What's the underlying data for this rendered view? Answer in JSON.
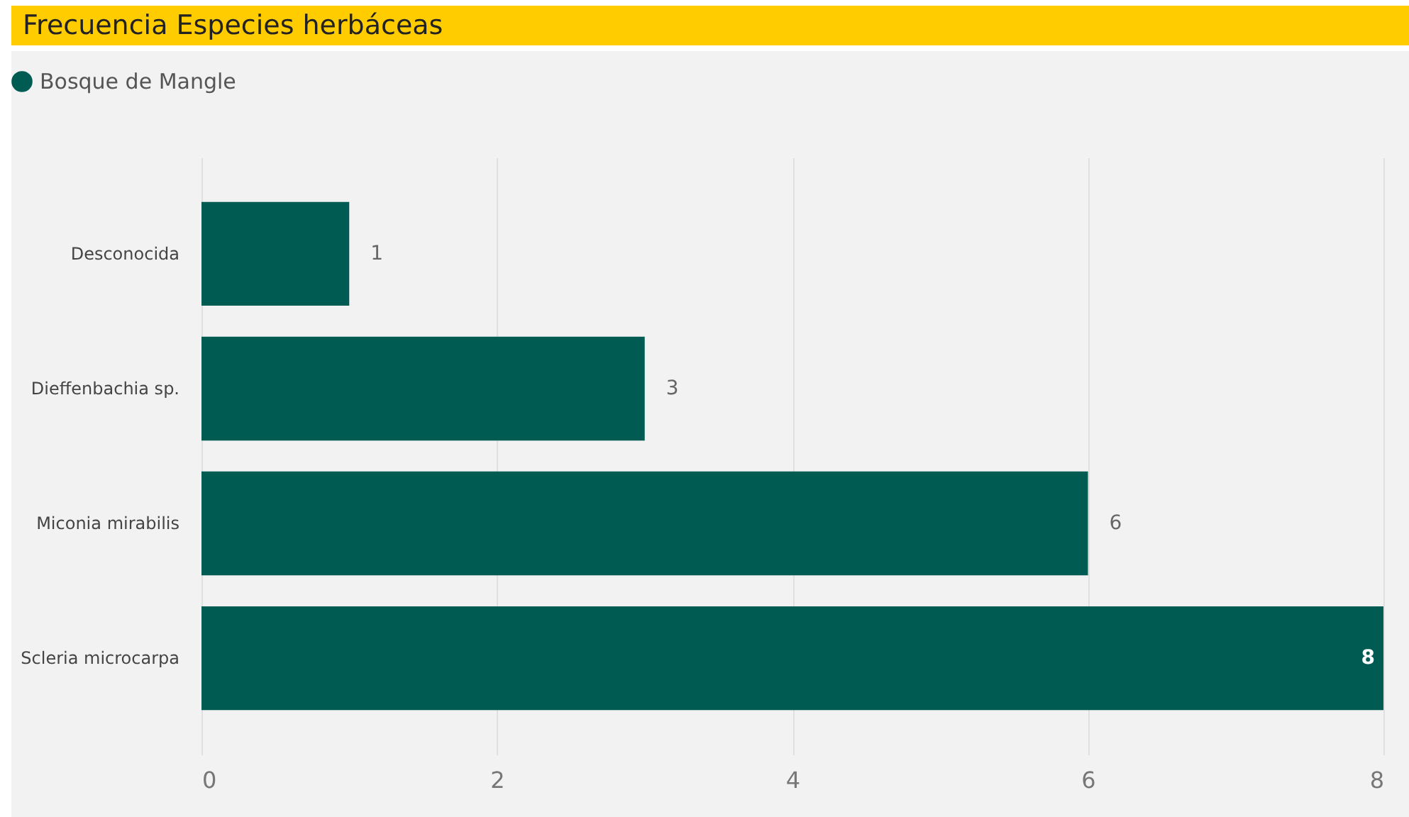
{
  "chart_data": {
    "type": "bar",
    "orientation": "horizontal",
    "title": "Frecuencia Especies herbáceas",
    "categories": [
      "Desconocida",
      "Dieffenbachia sp.",
      "Miconia mirabilis",
      "Scleria microcarpa"
    ],
    "series": [
      {
        "name": "Bosque de Mangle",
        "color": "#005c53",
        "values": [
          1,
          3,
          6,
          8
        ]
      }
    ],
    "xlim": [
      0,
      8
    ],
    "xticks": [
      0,
      2,
      4,
      6,
      8
    ],
    "grid": "x",
    "legend": "top left",
    "data_labels": true
  }
}
